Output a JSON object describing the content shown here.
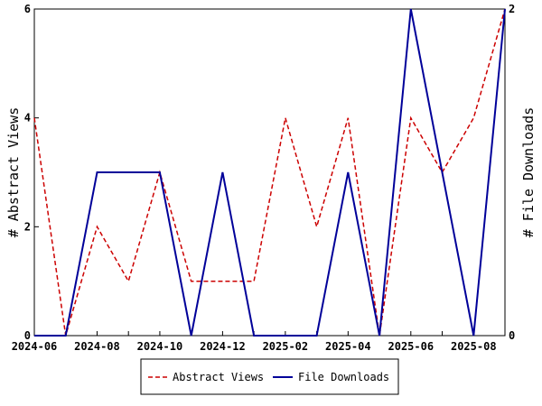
{
  "chart_data": {
    "type": "line",
    "x": [
      "2024-06",
      "2024-07",
      "2024-08",
      "2024-09",
      "2024-10",
      "2024-11",
      "2024-12",
      "2025-01",
      "2025-02",
      "2025-03",
      "2025-04",
      "2025-05",
      "2025-06",
      "2025-07",
      "2025-08",
      "2025-09"
    ],
    "x_tick_labels": [
      "2024-06",
      "2024-08",
      "2024-10",
      "2024-12",
      "2025-02",
      "2025-04",
      "2025-06",
      "2025-08"
    ],
    "series": [
      {
        "name": "Abstract Views",
        "axis": "left",
        "color": "#cc0000",
        "style": "dashed",
        "values": [
          4,
          0,
          2,
          1,
          3,
          1,
          1,
          1,
          4,
          2,
          4,
          0,
          4,
          3,
          4,
          6
        ]
      },
      {
        "name": "File Downloads",
        "axis": "right",
        "color": "#000099",
        "style": "solid",
        "values": [
          0,
          0,
          1,
          1,
          1,
          0,
          1,
          0,
          0,
          0,
          1,
          0,
          2,
          1,
          0,
          2
        ]
      }
    ],
    "ylabel": "# Abstract Views",
    "y2label": "# File Downloads",
    "ylim": [
      0,
      6
    ],
    "y_ticks": [
      0,
      2,
      4,
      6
    ],
    "y2lim": [
      0,
      2
    ],
    "y2_ticks": [
      0,
      2
    ],
    "grid": false,
    "legend_position": "bottom-center"
  }
}
